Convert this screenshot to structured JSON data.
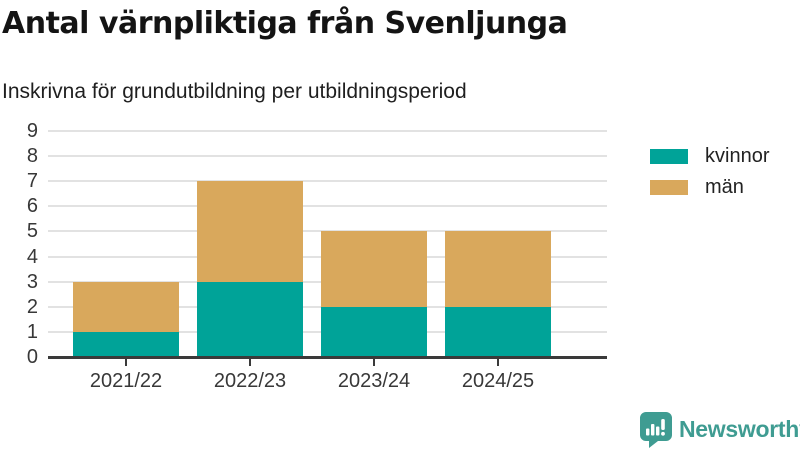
{
  "chart": {
    "title": "Antal värnpliktiga från Svenljunga",
    "subtitle": "Inskrivna för grundutbildning per utbildningsperiod"
  },
  "chart_data": {
    "type": "bar",
    "stacked": true,
    "categories": [
      "2021/22",
      "2022/23",
      "2023/24",
      "2024/25"
    ],
    "series": [
      {
        "name": "kvinnor",
        "color": "#00a398",
        "values": [
          1,
          3,
          2,
          2
        ]
      },
      {
        "name": "män",
        "color": "#d9a85c",
        "values": [
          2,
          4,
          3,
          3
        ]
      }
    ],
    "totals": [
      3,
      7,
      5,
      5
    ],
    "title": "Antal värnpliktiga från Svenljunga",
    "subtitle": "Inskrivna för grundutbildning per utbildningsperiod",
    "xlabel": "",
    "ylabel": "",
    "ylim": [
      0,
      9
    ],
    "yticks": [
      0,
      1,
      2,
      3,
      4,
      5,
      6,
      7,
      8,
      9
    ],
    "grid": true,
    "legend_position": "right"
  },
  "branding": {
    "logo_text": "Newsworthy",
    "logo_color": "#3f9c92"
  },
  "colors": {
    "axis": "#3a3a3a",
    "gridline": "#e2e2e2",
    "tick_text": "#383838",
    "title_text": "#141414"
  }
}
